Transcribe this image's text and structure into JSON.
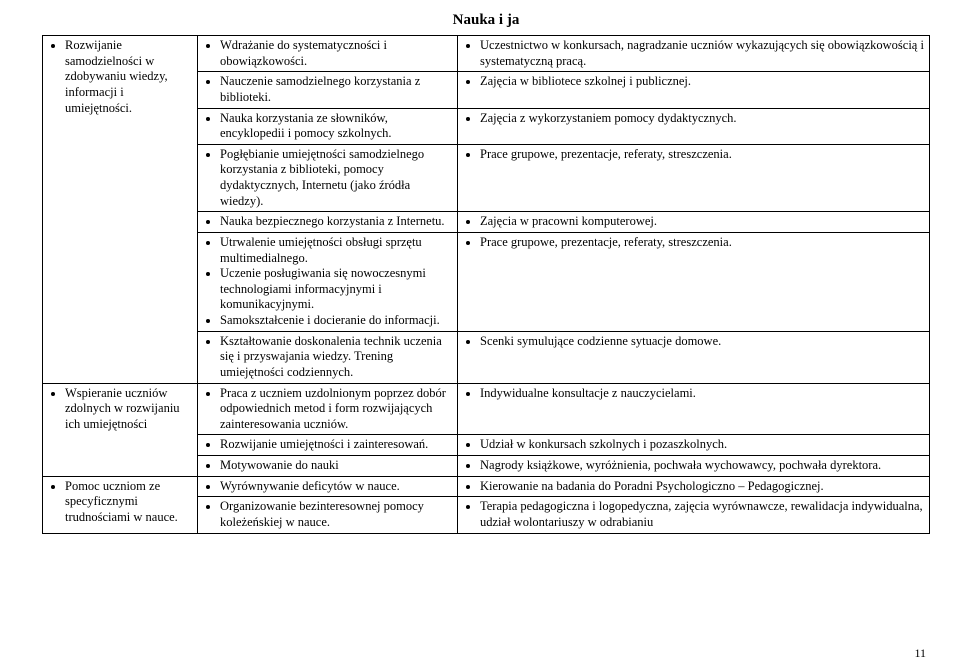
{
  "title": "Nauka i ja",
  "pageNumber": "11",
  "col1": {
    "c0": "Rozwijanie samodzielności w zdobywaniu wiedzy, informacji i umiejętności.",
    "c1": "Wspieranie uczniów zdolnych        w rozwijaniu ich umiejętności",
    "c2": "Pomoc uczniom ze specyficznymi trudnościami w nauce."
  },
  "col2": {
    "r0": "Wdrażanie do systematyczności i obowiązkowości.",
    "r1": "Nauczenie samodzielnego korzystania z biblioteki.",
    "r2": "Nauka korzystania ze słowników, encyklopedii i pomocy szkolnych.",
    "r3": "Pogłębianie umiejętności samodzielnego korzystania z biblioteki, pomocy dydaktycznych, Internetu (jako źródła wiedzy).",
    "r4": "Nauka bezpiecznego korzystania z Internetu.",
    "r5a": "Utrwalenie umiejętności obsługi sprzętu multimedialnego.",
    "r5b": "Uczenie posługiwania się nowoczesnymi technologiami informacyjnymi i komunikacyjnymi.",
    "r5c": "Samokształcenie i docieranie do informacji.",
    "r6": "Kształtowanie doskonalenia technik uczenia się  i przyswajania wiedzy. Trening umiejętności codziennych.",
    "r7": "Praca  z  uczniem  uzdolnionym  poprzez dobór  odpowiednich metod i form rozwijających zainteresowania uczniów.",
    "r8": "Rozwijanie umiejętności i zainteresowań.",
    "r9": "Motywowanie do nauki",
    "r10": "Wyrównywanie deficytów w nauce.",
    "r11": "Organizowanie bezinteresownej pomocy koleżeńskiej w nauce."
  },
  "col3": {
    "r0": "Uczestnictwo w konkursach, nagradzanie uczniów wykazujących się obowiązkowością i systematyczną pracą.",
    "r1": "Zajęcia w bibliotece szkolnej i publicznej.",
    "r2": "Zajęcia  z wykorzystaniem pomocy dydaktycznych.",
    "r3": "Prace grupowe, prezentacje, referaty, streszczenia.",
    "r4": "Zajęcia w pracowni komputerowej.",
    "r5": "Prace grupowe, prezentacje, referaty, streszczenia.",
    "r6": "Scenki symulujące codzienne sytuacje domowe.",
    "r7": "Indywidualne konsultacje z nauczycielami.",
    "r8": "Udział w konkursach szkolnych i pozaszkolnych.",
    "r9": "Nagrody książkowe, wyróżnienia, pochwała wychowawcy, pochwała dyrektora.",
    "r10": "Kierowanie na badania do Poradni Psychologiczno – Pedagogicznej.",
    "r11": "Terapia pedagogiczna  i  logopedyczna, zajęcia wyrównawcze, rewalidacja indywidualna, udział wolontariuszy w odrabianiu"
  }
}
